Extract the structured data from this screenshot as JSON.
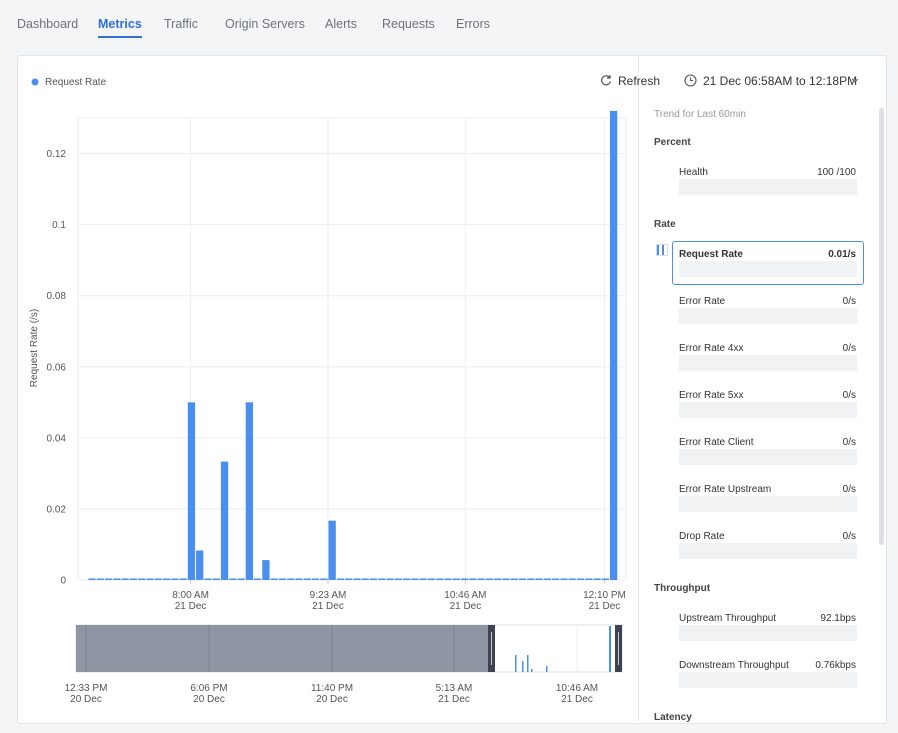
{
  "tabs": [
    "Dashboard",
    "Metrics",
    "Traffic",
    "Origin Servers",
    "Alerts",
    "Requests",
    "Errors"
  ],
  "toolbar": {
    "refresh": "Refresh",
    "range": "21 Dec 06:58AM to 12:18PM"
  },
  "chart_data": {
    "type": "bar",
    "y_label": "Request Rate (/s)",
    "color": "#4a8ef0",
    "grid": true,
    "series": [
      {
        "name": "Request Rate",
        "color": "#4a8ef0",
        "x": [
          418,
          423,
          428,
          433,
          438,
          443,
          448,
          453,
          458,
          463,
          468,
          473,
          478,
          483,
          488,
          493,
          498,
          503,
          508,
          513,
          518,
          523,
          528,
          533,
          538,
          543,
          548,
          553,
          558,
          563,
          568,
          573,
          578,
          583,
          588,
          593,
          598,
          603,
          608,
          613,
          618,
          623,
          628,
          633,
          638,
          643,
          648,
          653,
          658,
          663,
          668,
          673,
          678,
          683,
          688,
          693,
          698,
          703,
          708,
          713,
          718,
          723,
          728,
          733
        ],
        "values": [
          0,
          0,
          0,
          0,
          0,
          0,
          0,
          0,
          0,
          0,
          0,
          0,
          0.05,
          0.0083,
          0,
          0,
          0.0333,
          0,
          0,
          0.05,
          0,
          0.0056,
          0,
          0,
          0,
          0,
          0,
          0,
          0,
          0.0167,
          0,
          0,
          0,
          0,
          0,
          0,
          0,
          0,
          0,
          0,
          0,
          0,
          0,
          0,
          0,
          0,
          0,
          0,
          0,
          0,
          0,
          0,
          0,
          0,
          0,
          0,
          0,
          0,
          0,
          0,
          0,
          0,
          0,
          0.132
        ]
      }
    ],
    "xlim": [
      412,
      743
    ],
    "xticks": [
      {
        "value": 480,
        "label": "8:00 AM",
        "sublabel": "21 Dec"
      },
      {
        "value": 563,
        "label": "9:23 AM",
        "sublabel": "21 Dec"
      },
      {
        "value": 646,
        "label": "10:46 AM",
        "sublabel": "21 Dec"
      },
      {
        "value": 730,
        "label": "12:10 PM",
        "sublabel": "21 Dec"
      }
    ],
    "ylim": [
      0,
      0.13
    ],
    "yticks": [
      0,
      0.02,
      0.04,
      0.06,
      0.08,
      0.1,
      0.12
    ]
  },
  "navigator": {
    "ticks": [
      {
        "label": "12:33 PM",
        "sublabel": "20 Dec"
      },
      {
        "label": "6:06 PM",
        "sublabel": "20 Dec"
      },
      {
        "label": "11:40 PM",
        "sublabel": "20 Dec"
      },
      {
        "label": "5:13 AM",
        "sublabel": "21 Dec"
      },
      {
        "label": "10:46 AM",
        "sublabel": "21 Dec"
      }
    ]
  },
  "sidebar": {
    "caption": "Trend for Last 60min",
    "groups": [
      {
        "title": "Percent",
        "items": [
          {
            "label": "Health",
            "value": "100 /100"
          }
        ]
      },
      {
        "title": "Rate",
        "items": [
          {
            "label": "Request Rate",
            "value": "0.01/s"
          },
          {
            "label": "Error Rate",
            "value": "0/s"
          },
          {
            "label": "Error Rate 4xx",
            "value": "0/s"
          },
          {
            "label": "Error Rate 5xx",
            "value": "0/s"
          },
          {
            "label": "Error Rate Client",
            "value": "0/s"
          },
          {
            "label": "Error Rate Upstream",
            "value": "0/s"
          },
          {
            "label": "Drop Rate",
            "value": "0/s"
          }
        ]
      },
      {
        "title": "Throughput",
        "items": [
          {
            "label": "Upstream Throughput",
            "value": "92.1bps"
          },
          {
            "label": "Downstream Throughput",
            "value": "0.76kbps"
          }
        ]
      },
      {
        "title": "Latency",
        "items": []
      }
    ]
  }
}
